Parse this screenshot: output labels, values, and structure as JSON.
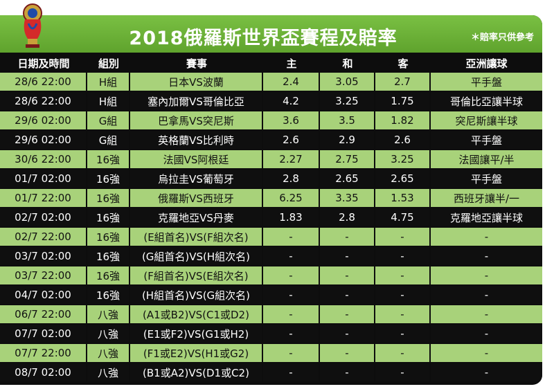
{
  "header": {
    "title": "2018俄羅斯世界盃賽程及賠率",
    "note": "＊賠率只供參考"
  },
  "colors": {
    "banner_green": "#6db33f",
    "light_row": "#a8d27a",
    "dark_row": "#0f0f0f"
  },
  "table": {
    "headers": [
      "日期及時間",
      "組別",
      "賽事",
      "主",
      "和",
      "客",
      "亞洲讓球"
    ],
    "rows": [
      [
        "28/6 22:00",
        "H組",
        "日本VS波蘭",
        "2.4",
        "3.05",
        "2.7",
        "平手盤"
      ],
      [
        "28/6 22:00",
        "H組",
        "塞內加爾VS哥倫比亞",
        "4.2",
        "3.25",
        "1.75",
        "哥倫比亞讓半球"
      ],
      [
        "29/6 02:00",
        "G組",
        "巴拿馬VS突尼斯",
        "3.6",
        "3.5",
        "1.82",
        "突尼斯讓半球"
      ],
      [
        "29/6 02:00",
        "G組",
        "英格蘭VS比利時",
        "2.6",
        "2.9",
        "2.6",
        "平手盤"
      ],
      [
        "30/6 22:00",
        "16強",
        "法國VS阿根廷",
        "2.27",
        "2.75",
        "3.25",
        "法國讓平/半"
      ],
      [
        "01/7 02:00",
        "16強",
        "烏拉圭VS葡萄牙",
        "2.8",
        "2.65",
        "2.65",
        "平手盤"
      ],
      [
        "01/7 22:00",
        "16強",
        "俄羅斯VS西班牙",
        "6.25",
        "3.35",
        "1.53",
        "西班牙讓半/一"
      ],
      [
        "02/7 02:00",
        "16強",
        "克羅地亞VS丹麥",
        "1.83",
        "2.8",
        "4.75",
        "克羅地亞讓半球"
      ],
      [
        "02/7 22:00",
        "16強",
        "(E組首名)VS(F組次名)",
        "-",
        "-",
        "-",
        "-"
      ],
      [
        "03/7 02:00",
        "16強",
        "(G組首名)VS(H組次名)",
        "-",
        "-",
        "-",
        "-"
      ],
      [
        "03/7 22:00",
        "16強",
        "(F組首名)VS(E組次名)",
        "-",
        "-",
        "-",
        "-"
      ],
      [
        "04/7 02:00",
        "16強",
        "(H組首名)VS(G組次名)",
        "-",
        "-",
        "-",
        "-"
      ],
      [
        "06/7 22:00",
        "八強",
        "(A1或B2)VS(C1或D2)",
        "-",
        "-",
        "-",
        "-"
      ],
      [
        "07/7 02:00",
        "八強",
        "(E1或F2)VS(G1或H2)",
        "-",
        "-",
        "-",
        "-"
      ],
      [
        "07/7 22:00",
        "八強",
        "(F1或E2)VS(H1或G2)",
        "-",
        "-",
        "-",
        "-"
      ],
      [
        "08/7 02:00",
        "八強",
        "(B1或A2)VS(D1或C2)",
        "-",
        "-",
        "-",
        "-"
      ]
    ]
  }
}
